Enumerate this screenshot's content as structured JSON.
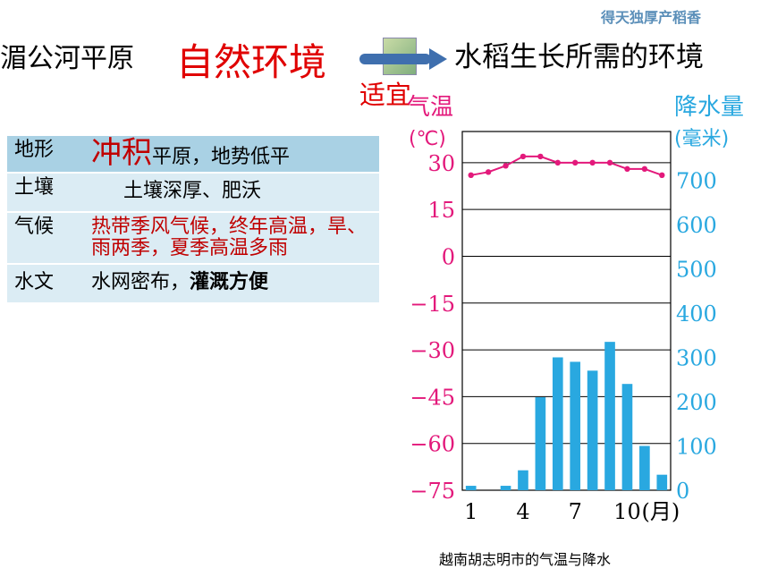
{
  "corner_tag": "得天独厚产稻香",
  "heading": {
    "left": "湄公河平原",
    "big": "自然环境",
    "right": "水稻生长所需的环境",
    "suitable": "适宜"
  },
  "table": {
    "rows": [
      {
        "key": "地形",
        "emph": "冲积",
        "value": "平原，地势低平"
      },
      {
        "key": "土壤",
        "value": "土壤深厚、肥沃"
      },
      {
        "key": "气候",
        "value": "热带季风气候，终年高温，旱、雨两季，夏季高温多雨"
      },
      {
        "key": "水文",
        "value": "水网密布，",
        "value_bold": "灌溉方便"
      }
    ]
  },
  "colors": {
    "temp": "#e3197b",
    "precip": "#29a8e0",
    "accent": "#e00000"
  },
  "chart_data": {
    "type": "bar+line",
    "caption": "越南胡志明市的气温与降水",
    "left_axis": {
      "label": "气温",
      "unit": "(℃)",
      "range": [
        -75,
        40
      ],
      "ticks": [
        30,
        15,
        0,
        -15,
        -30,
        -45,
        -60,
        -75
      ],
      "tick_labels": [
        "30",
        "15",
        "0",
        "−15",
        "−30",
        "−45",
        "−60",
        "−75"
      ]
    },
    "right_axis": {
      "label": "降水量",
      "unit": "(毫米)",
      "range": [
        0,
        810
      ],
      "ticks": [
        700,
        600,
        500,
        400,
        300,
        200,
        100,
        0
      ]
    },
    "x": [
      1,
      2,
      3,
      4,
      5,
      6,
      7,
      8,
      9,
      10,
      11,
      12
    ],
    "x_tick_labels": [
      "1",
      "4",
      "7",
      "10"
    ],
    "x_unit": "(月)",
    "temperature": [
      26,
      27,
      29,
      32,
      32,
      30,
      30,
      30,
      30,
      28,
      28,
      26
    ],
    "precipitation": [
      10,
      0,
      10,
      45,
      210,
      300,
      290,
      270,
      335,
      240,
      100,
      35
    ],
    "grid": true
  }
}
